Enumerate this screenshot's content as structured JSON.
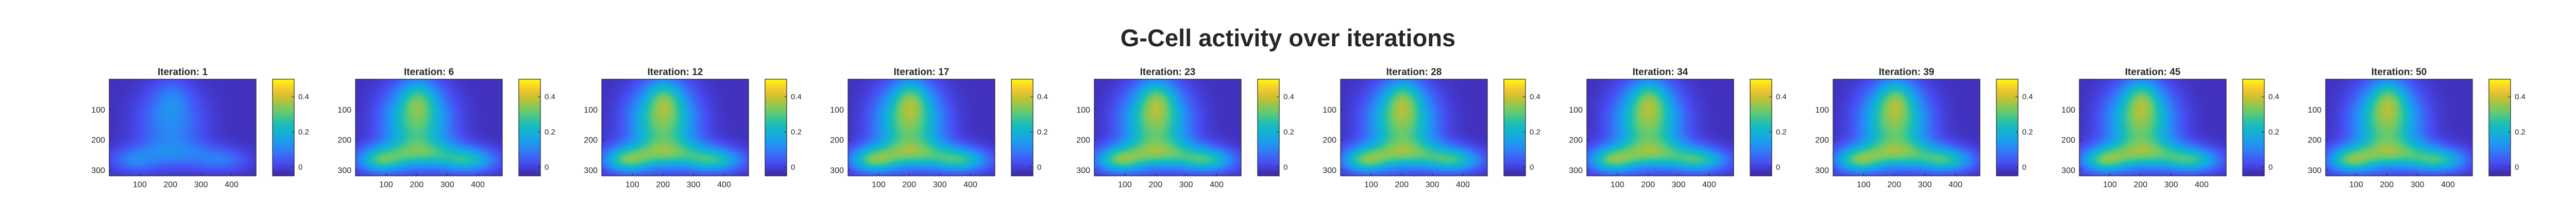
{
  "figure": {
    "title": "G-Cell activity over iterations"
  },
  "chart_data": {
    "type": "heatmap",
    "title": "G-Cell activity over iterations",
    "colormap": "parula",
    "colors": {
      "low": "#3e26a8",
      "mid": "#17beb8",
      "high": "#f9fb0e",
      "text": "#262626",
      "axis": "#262626"
    },
    "x_ticks": [
      "100",
      "200",
      "300",
      "400"
    ],
    "y_ticks": [
      "100",
      "200",
      "300"
    ],
    "colorbar": {
      "range": [
        -0.05,
        0.5
      ],
      "ticks": [
        "0",
        "0.2",
        "0.4"
      ]
    },
    "grid_size": [
      480,
      320
    ],
    "panels": [
      {
        "title": "Iteration: 1",
        "iteration": 1,
        "peak": 0.17
      },
      {
        "title": "Iteration: 6",
        "iteration": 6,
        "peak": 0.43
      },
      {
        "title": "Iteration: 12",
        "iteration": 12,
        "peak": 0.46
      },
      {
        "title": "Iteration: 17",
        "iteration": 17,
        "peak": 0.47
      },
      {
        "title": "Iteration: 23",
        "iteration": 23,
        "peak": 0.47
      },
      {
        "title": "Iteration: 28",
        "iteration": 28,
        "peak": 0.47
      },
      {
        "title": "Iteration: 34",
        "iteration": 34,
        "peak": 0.47
      },
      {
        "title": "Iteration: 39",
        "iteration": 39,
        "peak": 0.47
      },
      {
        "title": "Iteration: 45",
        "iteration": 45,
        "peak": 0.47
      },
      {
        "title": "Iteration: 50",
        "iteration": 50,
        "peak": 0.47
      }
    ]
  }
}
